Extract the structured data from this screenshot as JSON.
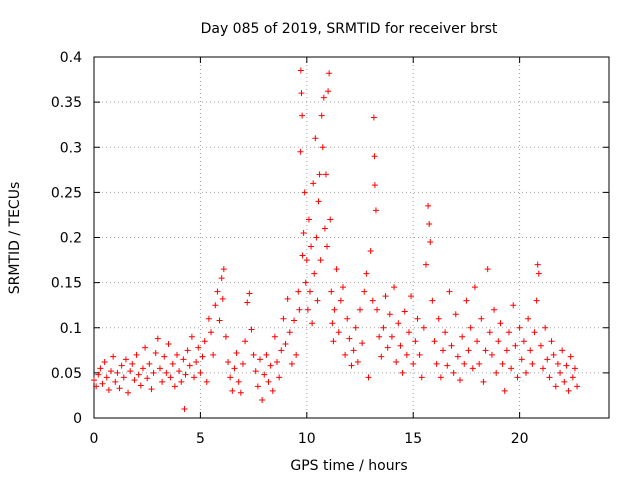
{
  "chart_data": {
    "type": "scatter",
    "title": "Day 085 of 2019, SRMTID for receiver brst",
    "xlabel": "GPS time / hours",
    "ylabel": "SRMTID / TECUs",
    "xlim": [
      0,
      24.2
    ],
    "ylim": [
      0,
      0.4
    ],
    "xticks": [
      0,
      5,
      10,
      15,
      20
    ],
    "yticks": [
      0,
      0.05,
      0.1,
      0.15,
      0.2,
      0.25,
      0.3,
      0.35,
      0.4
    ],
    "xtick_labels": [
      "0",
      "5",
      "10",
      "15",
      "20"
    ],
    "ytick_labels": [
      "0",
      "0.05",
      "0.1",
      "0.15",
      "0.2",
      "0.25",
      "0.3",
      "0.35",
      "0.4"
    ],
    "grid": true,
    "marker": "+",
    "color": "#ff0000",
    "series": [
      {
        "name": "SRMTID",
        "points": [
          [
            0.0,
            0.042
          ],
          [
            0.1,
            0.035
          ],
          [
            0.2,
            0.048
          ],
          [
            0.3,
            0.055
          ],
          [
            0.4,
            0.038
          ],
          [
            0.5,
            0.062
          ],
          [
            0.6,
            0.045
          ],
          [
            0.7,
            0.031
          ],
          [
            0.8,
            0.052
          ],
          [
            0.9,
            0.068
          ],
          [
            1.0,
            0.04
          ],
          [
            1.1,
            0.05
          ],
          [
            1.2,
            0.033
          ],
          [
            1.3,
            0.058
          ],
          [
            1.4,
            0.045
          ],
          [
            1.5,
            0.065
          ],
          [
            1.6,
            0.028
          ],
          [
            1.7,
            0.052
          ],
          [
            1.8,
            0.06
          ],
          [
            1.9,
            0.042
          ],
          [
            2.0,
            0.07
          ],
          [
            2.1,
            0.048
          ],
          [
            2.2,
            0.036
          ],
          [
            2.3,
            0.055
          ],
          [
            2.4,
            0.078
          ],
          [
            2.5,
            0.044
          ],
          [
            2.6,
            0.06
          ],
          [
            2.7,
            0.032
          ],
          [
            2.8,
            0.05
          ],
          [
            2.9,
            0.072
          ],
          [
            3.0,
            0.088
          ],
          [
            3.1,
            0.055
          ],
          [
            3.2,
            0.04
          ],
          [
            3.3,
            0.068
          ],
          [
            3.4,
            0.05
          ],
          [
            3.5,
            0.082
          ],
          [
            3.6,
            0.045
          ],
          [
            3.7,
            0.06
          ],
          [
            3.8,
            0.035
          ],
          [
            3.9,
            0.07
          ],
          [
            4.0,
            0.052
          ],
          [
            4.1,
            0.04
          ],
          [
            4.2,
            0.065
          ],
          [
            4.25,
            0.01
          ],
          [
            4.3,
            0.048
          ],
          [
            4.4,
            0.075
          ],
          [
            4.5,
            0.058
          ],
          [
            4.6,
            0.09
          ],
          [
            4.7,
            0.045
          ],
          [
            4.8,
            0.062
          ],
          [
            4.9,
            0.078
          ],
          [
            5.0,
            0.05
          ],
          [
            5.1,
            0.068
          ],
          [
            5.2,
            0.085
          ],
          [
            5.3,
            0.04
          ],
          [
            5.4,
            0.11
          ],
          [
            5.5,
            0.095
          ],
          [
            5.6,
            0.07
          ],
          [
            5.7,
            0.125
          ],
          [
            5.8,
            0.14
          ],
          [
            5.9,
            0.108
          ],
          [
            6.0,
            0.155
          ],
          [
            6.05,
            0.132
          ],
          [
            6.1,
            0.165
          ],
          [
            6.2,
            0.09
          ],
          [
            6.3,
            0.062
          ],
          [
            6.4,
            0.045
          ],
          [
            6.5,
            0.03
          ],
          [
            6.6,
            0.055
          ],
          [
            6.7,
            0.072
          ],
          [
            6.8,
            0.04
          ],
          [
            6.9,
            0.028
          ],
          [
            7.0,
            0.06
          ],
          [
            7.1,
            0.085
          ],
          [
            7.2,
            0.128
          ],
          [
            7.3,
            0.138
          ],
          [
            7.4,
            0.098
          ],
          [
            7.5,
            0.07
          ],
          [
            7.6,
            0.052
          ],
          [
            7.7,
            0.035
          ],
          [
            7.8,
            0.065
          ],
          [
            7.9,
            0.02
          ],
          [
            8.0,
            0.048
          ],
          [
            8.1,
            0.07
          ],
          [
            8.2,
            0.04
          ],
          [
            8.3,
            0.058
          ],
          [
            8.4,
            0.03
          ],
          [
            8.5,
            0.09
          ],
          [
            8.6,
            0.062
          ],
          [
            8.7,
            0.045
          ],
          [
            8.8,
            0.075
          ],
          [
            8.9,
            0.11
          ],
          [
            9.0,
            0.082
          ],
          [
            9.1,
            0.132
          ],
          [
            9.2,
            0.095
          ],
          [
            9.3,
            0.06
          ],
          [
            9.4,
            0.108
          ],
          [
            9.5,
            0.07
          ],
          [
            9.6,
            0.14
          ],
          [
            9.65,
            0.12
          ],
          [
            9.7,
            0.295
          ],
          [
            9.72,
            0.385
          ],
          [
            9.75,
            0.36
          ],
          [
            9.78,
            0.335
          ],
          [
            9.8,
            0.18
          ],
          [
            9.85,
            0.205
          ],
          [
            9.9,
            0.25
          ],
          [
            9.95,
            0.15
          ],
          [
            10.0,
            0.175
          ],
          [
            10.05,
            0.12
          ],
          [
            10.1,
            0.22
          ],
          [
            10.15,
            0.14
          ],
          [
            10.2,
            0.19
          ],
          [
            10.25,
            0.105
          ],
          [
            10.3,
            0.26
          ],
          [
            10.35,
            0.16
          ],
          [
            10.4,
            0.31
          ],
          [
            10.45,
            0.2
          ],
          [
            10.5,
            0.13
          ],
          [
            10.55,
            0.24
          ],
          [
            10.6,
            0.27
          ],
          [
            10.65,
            0.175
          ],
          [
            10.7,
            0.335
          ],
          [
            10.75,
            0.3
          ],
          [
            10.8,
            0.355
          ],
          [
            10.85,
            0.21
          ],
          [
            10.9,
            0.27
          ],
          [
            10.95,
            0.19
          ],
          [
            11.0,
            0.362
          ],
          [
            11.05,
            0.382
          ],
          [
            11.1,
            0.22
          ],
          [
            11.15,
            0.14
          ],
          [
            11.2,
            0.105
          ],
          [
            11.25,
            0.085
          ],
          [
            11.3,
            0.12
          ],
          [
            11.4,
            0.165
          ],
          [
            11.5,
            0.095
          ],
          [
            11.6,
            0.13
          ],
          [
            11.7,
            0.145
          ],
          [
            11.8,
            0.07
          ],
          [
            11.9,
            0.11
          ],
          [
            12.0,
            0.088
          ],
          [
            12.1,
            0.058
          ],
          [
            12.2,
            0.075
          ],
          [
            12.3,
            0.1
          ],
          [
            12.4,
            0.062
          ],
          [
            12.5,
            0.12
          ],
          [
            12.6,
            0.083
          ],
          [
            12.7,
            0.14
          ],
          [
            12.8,
            0.16
          ],
          [
            12.9,
            0.045
          ],
          [
            13.0,
            0.185
          ],
          [
            13.1,
            0.13
          ],
          [
            13.15,
            0.333
          ],
          [
            13.18,
            0.29
          ],
          [
            13.2,
            0.258
          ],
          [
            13.25,
            0.23
          ],
          [
            13.3,
            0.12
          ],
          [
            13.4,
            0.09
          ],
          [
            13.5,
            0.068
          ],
          [
            13.6,
            0.1
          ],
          [
            13.7,
            0.135
          ],
          [
            13.8,
            0.078
          ],
          [
            13.9,
            0.115
          ],
          [
            14.0,
            0.09
          ],
          [
            14.1,
            0.145
          ],
          [
            14.2,
            0.062
          ],
          [
            14.3,
            0.105
          ],
          [
            14.4,
            0.08
          ],
          [
            14.5,
            0.05
          ],
          [
            14.6,
            0.118
          ],
          [
            14.7,
            0.07
          ],
          [
            14.8,
            0.095
          ],
          [
            14.9,
            0.135
          ],
          [
            15.0,
            0.06
          ],
          [
            15.1,
            0.085
          ],
          [
            15.2,
            0.11
          ],
          [
            15.3,
            0.07
          ],
          [
            15.4,
            0.045
          ],
          [
            15.5,
            0.1
          ],
          [
            15.6,
            0.17
          ],
          [
            15.7,
            0.235
          ],
          [
            15.75,
            0.215
          ],
          [
            15.8,
            0.195
          ],
          [
            15.9,
            0.13
          ],
          [
            16.0,
            0.085
          ],
          [
            16.1,
            0.06
          ],
          [
            16.2,
            0.11
          ],
          [
            16.3,
            0.045
          ],
          [
            16.4,
            0.075
          ],
          [
            16.5,
            0.095
          ],
          [
            16.6,
            0.058
          ],
          [
            16.7,
            0.14
          ],
          [
            16.8,
            0.08
          ],
          [
            16.9,
            0.05
          ],
          [
            17.0,
            0.115
          ],
          [
            17.1,
            0.068
          ],
          [
            17.2,
            0.042
          ],
          [
            17.3,
            0.09
          ],
          [
            17.4,
            0.06
          ],
          [
            17.5,
            0.13
          ],
          [
            17.6,
            0.075
          ],
          [
            17.7,
            0.1
          ],
          [
            17.8,
            0.055
          ],
          [
            17.9,
            0.145
          ],
          [
            18.0,
            0.085
          ],
          [
            18.1,
            0.06
          ],
          [
            18.2,
            0.11
          ],
          [
            18.3,
            0.04
          ],
          [
            18.4,
            0.075
          ],
          [
            18.5,
            0.165
          ],
          [
            18.6,
            0.095
          ],
          [
            18.7,
            0.07
          ],
          [
            18.8,
            0.12
          ],
          [
            18.9,
            0.05
          ],
          [
            19.0,
            0.085
          ],
          [
            19.1,
            0.105
          ],
          [
            19.2,
            0.06
          ],
          [
            19.3,
            0.03
          ],
          [
            19.4,
            0.075
          ],
          [
            19.5,
            0.095
          ],
          [
            19.6,
            0.055
          ],
          [
            19.7,
            0.125
          ],
          [
            19.8,
            0.08
          ],
          [
            19.9,
            0.045
          ],
          [
            20.0,
            0.1
          ],
          [
            20.1,
            0.065
          ],
          [
            20.2,
            0.085
          ],
          [
            20.3,
            0.05
          ],
          [
            20.4,
            0.11
          ],
          [
            20.5,
            0.075
          ],
          [
            20.6,
            0.06
          ],
          [
            20.7,
            0.095
          ],
          [
            20.8,
            0.13
          ],
          [
            20.85,
            0.17
          ],
          [
            20.9,
            0.16
          ],
          [
            21.0,
            0.08
          ],
          [
            21.1,
            0.055
          ],
          [
            21.2,
            0.1
          ],
          [
            21.3,
            0.065
          ],
          [
            21.4,
            0.045
          ],
          [
            21.5,
            0.085
          ],
          [
            21.6,
            0.07
          ],
          [
            21.7,
            0.035
          ],
          [
            21.8,
            0.06
          ],
          [
            21.9,
            0.05
          ],
          [
            22.0,
            0.075
          ],
          [
            22.1,
            0.04
          ],
          [
            22.2,
            0.058
          ],
          [
            22.3,
            0.03
          ],
          [
            22.4,
            0.068
          ],
          [
            22.5,
            0.045
          ],
          [
            22.6,
            0.055
          ],
          [
            22.7,
            0.035
          ]
        ]
      }
    ]
  }
}
